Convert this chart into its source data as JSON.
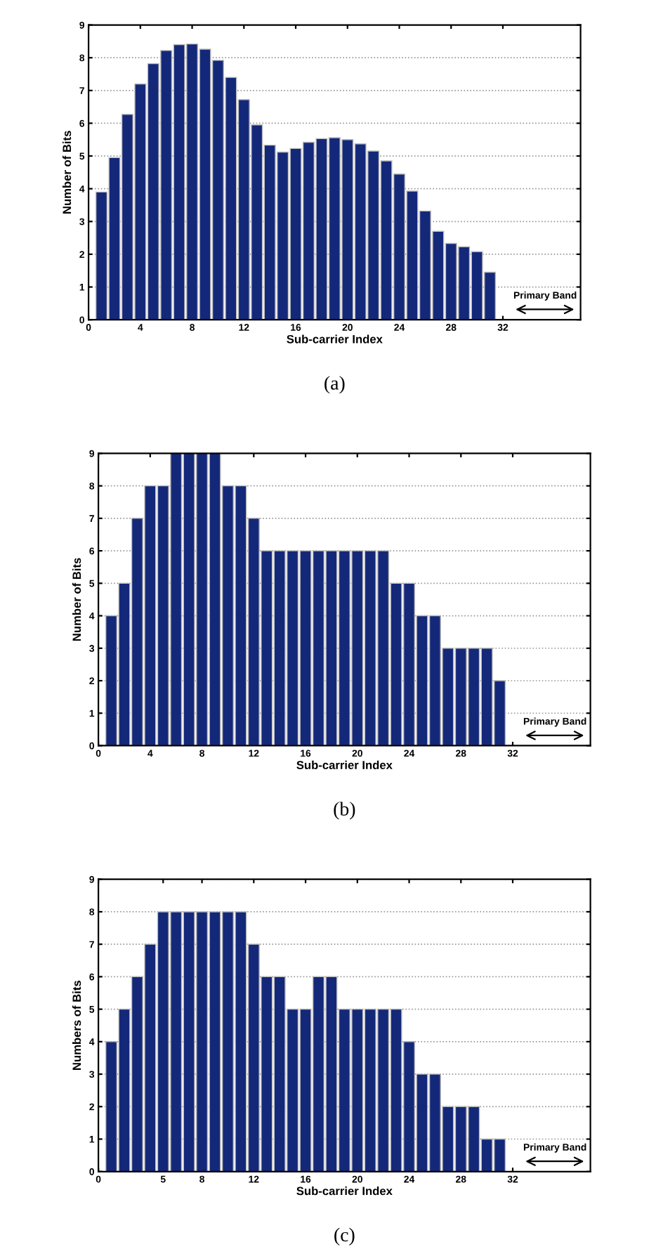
{
  "chart_data": [
    {
      "type": "bar",
      "xlabel": "Sub-carrier Index",
      "ylabel": "Number of Bits",
      "annotations": [
        "(a)",
        "Primary Band"
      ],
      "x": [
        1,
        2,
        3,
        4,
        5,
        6,
        7,
        8,
        9,
        10,
        11,
        12,
        13,
        14,
        15,
        16,
        17,
        18,
        19,
        20,
        21,
        22,
        23,
        24,
        25,
        26,
        27,
        28,
        29,
        30,
        31
      ],
      "values": [
        3.9,
        4.95,
        6.27,
        7.2,
        7.82,
        8.22,
        8.4,
        8.42,
        8.26,
        7.92,
        7.4,
        6.72,
        5.95,
        5.33,
        5.12,
        5.23,
        5.42,
        5.53,
        5.56,
        5.5,
        5.37,
        5.15,
        4.85,
        4.45,
        3.93,
        3.32,
        2.7,
        2.33,
        2.23,
        2.08,
        1.45
      ],
      "color": "#14287a",
      "xlim": [
        0,
        38
      ],
      "xticks": [
        0,
        4,
        8,
        12,
        16,
        20,
        24,
        28,
        32
      ],
      "ylim": [
        0,
        9
      ],
      "yticks": [
        0,
        1,
        2,
        3,
        4,
        5,
        6,
        7,
        8,
        9
      ],
      "grid": "y"
    },
    {
      "type": "bar",
      "xlabel": "Sub-carrier Index",
      "ylabel": "Number of Bits",
      "annotations": [
        "(b)",
        "Primary Band"
      ],
      "x": [
        1,
        2,
        3,
        4,
        5,
        6,
        7,
        8,
        9,
        10,
        11,
        12,
        13,
        14,
        15,
        16,
        17,
        18,
        19,
        20,
        21,
        22,
        23,
        24,
        25,
        26,
        27,
        28,
        29,
        30,
        31
      ],
      "values": [
        4,
        5,
        7,
        8,
        8,
        9,
        9,
        9,
        9,
        8,
        8,
        7,
        6,
        6,
        6,
        6,
        6,
        6,
        6,
        6,
        6,
        6,
        5,
        5,
        4,
        4,
        3,
        3,
        3,
        3,
        2
      ],
      "color": "#14287a",
      "xlim": [
        0,
        38
      ],
      "xticks": [
        0,
        4,
        8,
        12,
        16,
        20,
        24,
        28,
        32
      ],
      "ylim": [
        0,
        9
      ],
      "yticks": [
        0,
        1,
        2,
        3,
        4,
        5,
        6,
        7,
        8,
        9
      ],
      "grid": "y"
    },
    {
      "type": "bar",
      "xlabel": "Sub-carrier Index",
      "ylabel": "Numbers of Bits",
      "annotations": [
        "(c)",
        "Primary Band"
      ],
      "x": [
        1,
        2,
        3,
        4,
        5,
        6,
        7,
        8,
        9,
        10,
        11,
        12,
        13,
        14,
        15,
        16,
        17,
        18,
        19,
        20,
        21,
        22,
        23,
        24,
        25,
        26,
        27,
        28,
        29,
        30,
        31
      ],
      "values": [
        4,
        5,
        6,
        7,
        8,
        8,
        8,
        8,
        8,
        8,
        8,
        7,
        6,
        6,
        5,
        5,
        6,
        6,
        5,
        5,
        5,
        5,
        5,
        4,
        3,
        3,
        2,
        2,
        2,
        1,
        1
      ],
      "color": "#14287a",
      "xlim": [
        0,
        38
      ],
      "xticks": [
        0,
        5,
        8,
        12,
        16,
        20,
        24,
        28,
        32
      ],
      "ylim": [
        0,
        9
      ],
      "yticks": [
        0,
        1,
        2,
        3,
        4,
        5,
        6,
        7,
        8,
        9
      ],
      "grid": "y"
    }
  ]
}
